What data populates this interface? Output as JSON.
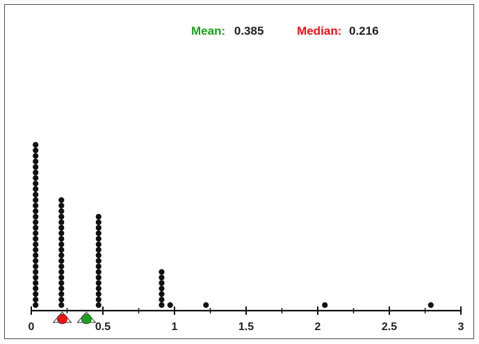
{
  "stats": {
    "mean_label": "Mean:",
    "mean_value": "0.385",
    "median_label": "Median:",
    "median_value": "0.216"
  },
  "chart_data": {
    "type": "dot",
    "xlim": [
      0,
      3
    ],
    "x_ticks": [
      0,
      0.5,
      1,
      1.5,
      2,
      2.5,
      3
    ],
    "x_tick_labels": [
      "0",
      "0.5",
      "1",
      "1.5",
      "2",
      "2.5",
      "3"
    ],
    "grid": false,
    "stacks": [
      {
        "x": 0.03,
        "count": 30
      },
      {
        "x": 0.21,
        "count": 20
      },
      {
        "x": 0.47,
        "count": 17
      },
      {
        "x": 0.91,
        "count": 7
      },
      {
        "x": 0.97,
        "count": 1
      },
      {
        "x": 1.22,
        "count": 1
      },
      {
        "x": 2.05,
        "count": 1
      },
      {
        "x": 2.79,
        "count": 1
      }
    ],
    "markers": [
      {
        "name": "median",
        "value": 0.216,
        "color": "#ee1111"
      },
      {
        "name": "mean",
        "value": 0.385,
        "color": "#1aa31a"
      }
    ]
  },
  "colors": {
    "dot": "#111111",
    "axis": "#111111",
    "mean": "#1aa31a",
    "median": "#ee1111"
  }
}
